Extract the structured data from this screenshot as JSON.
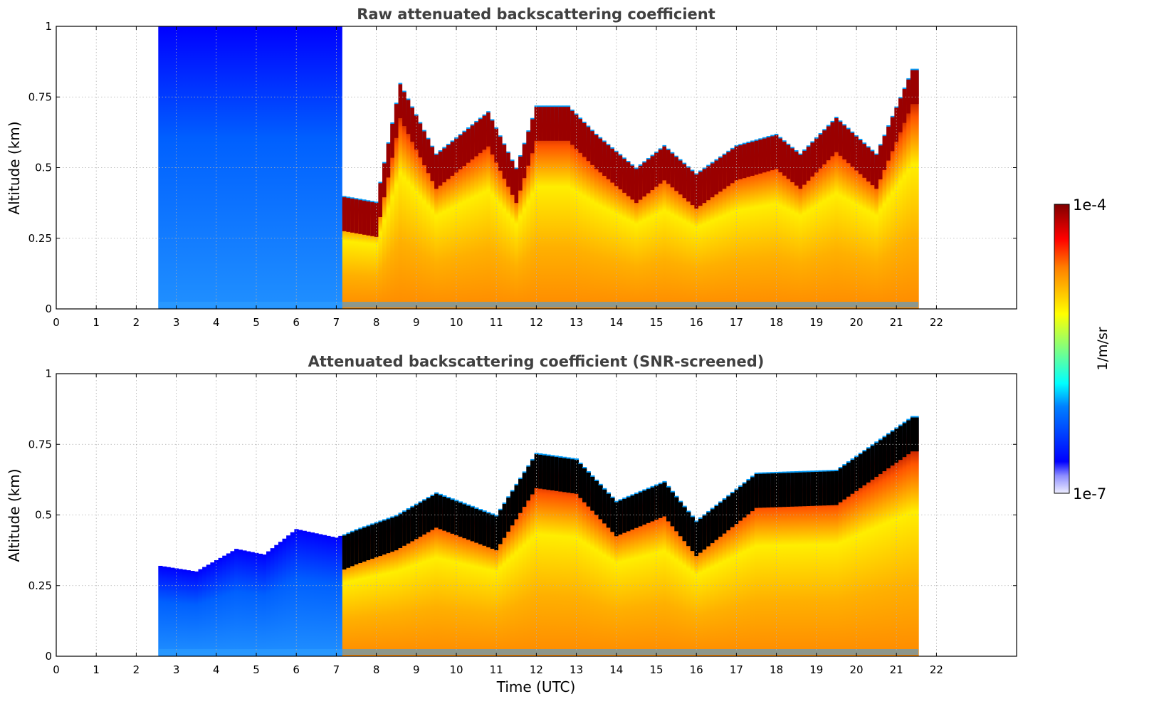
{
  "chart_data": [
    {
      "type": "heatmap",
      "title": "Raw attenuated backscattering coefficient",
      "ylabel": "Altitude (km)",
      "xlabel": "",
      "xlim": [
        0,
        24
      ],
      "ylim": [
        0,
        1
      ],
      "x_ticks": [
        0,
        1,
        2,
        3,
        4,
        5,
        6,
        7,
        8,
        9,
        10,
        11,
        12,
        13,
        14,
        15,
        16,
        17,
        18,
        19,
        20,
        21,
        22
      ],
      "y_ticks": [
        0,
        0.25,
        0.5,
        0.75,
        1
      ],
      "y_tick_labels": [
        "0",
        "0.25",
        "0.5",
        "0.75",
        "1"
      ],
      "grid": true,
      "data_start_utc": 2.55,
      "data_end_utc": 21.55,
      "cloud_top_km_at_hour": [
        [
          7.2,
          0.4
        ],
        [
          8.0,
          0.38
        ],
        [
          8.6,
          0.8
        ],
        [
          9.5,
          0.55
        ],
        [
          10.8,
          0.7
        ],
        [
          11.5,
          0.5
        ],
        [
          12.0,
          0.72
        ],
        [
          12.8,
          0.72
        ],
        [
          13.5,
          0.62
        ],
        [
          14.5,
          0.5
        ],
        [
          15.2,
          0.58
        ],
        [
          16.0,
          0.48
        ],
        [
          17.0,
          0.58
        ],
        [
          18.0,
          0.62
        ],
        [
          18.6,
          0.55
        ],
        [
          19.5,
          0.68
        ],
        [
          20.5,
          0.55
        ],
        [
          21.4,
          0.85
        ]
      ]
    },
    {
      "type": "heatmap",
      "title": "Attenuated backscattering coefficient (SNR-screened)",
      "ylabel": "Altitude (km)",
      "xlabel": "Time (UTC)",
      "xlim": [
        0,
        24
      ],
      "ylim": [
        0,
        1
      ],
      "x_ticks": [
        0,
        1,
        2,
        3,
        4,
        5,
        6,
        7,
        8,
        9,
        10,
        11,
        12,
        13,
        14,
        15,
        16,
        17,
        18,
        19,
        20,
        21,
        22
      ],
      "y_ticks": [
        0,
        0.25,
        0.5,
        0.75,
        1
      ],
      "y_tick_labels": [
        "0",
        "0.25",
        "0.5",
        "0.75",
        "1"
      ],
      "grid": true,
      "data_start_utc": 2.55,
      "data_end_utc": 21.55,
      "screened_top_km_at_hour": [
        [
          2.6,
          0.32
        ],
        [
          3.5,
          0.3
        ],
        [
          4.5,
          0.38
        ],
        [
          5.2,
          0.36
        ],
        [
          6.0,
          0.45
        ],
        [
          7.0,
          0.42
        ],
        [
          7.5,
          0.45
        ],
        [
          8.5,
          0.5
        ],
        [
          9.5,
          0.58
        ],
        [
          11.0,
          0.5
        ],
        [
          12.0,
          0.72
        ],
        [
          13.0,
          0.7
        ],
        [
          14.0,
          0.55
        ],
        [
          15.2,
          0.62
        ],
        [
          16.0,
          0.48
        ],
        [
          17.5,
          0.65
        ],
        [
          19.5,
          0.66
        ],
        [
          21.4,
          0.85
        ]
      ]
    }
  ],
  "colorbar": {
    "max_label": "1e-4",
    "min_label": "1e-7",
    "label": "1/m/sr",
    "colormap": "jet",
    "range": [
      1e-07,
      0.0001
    ],
    "scale": "log"
  },
  "colors": {
    "title": "#404040",
    "grid": "#b0b0b0",
    "saturated_screened": "#000000"
  }
}
